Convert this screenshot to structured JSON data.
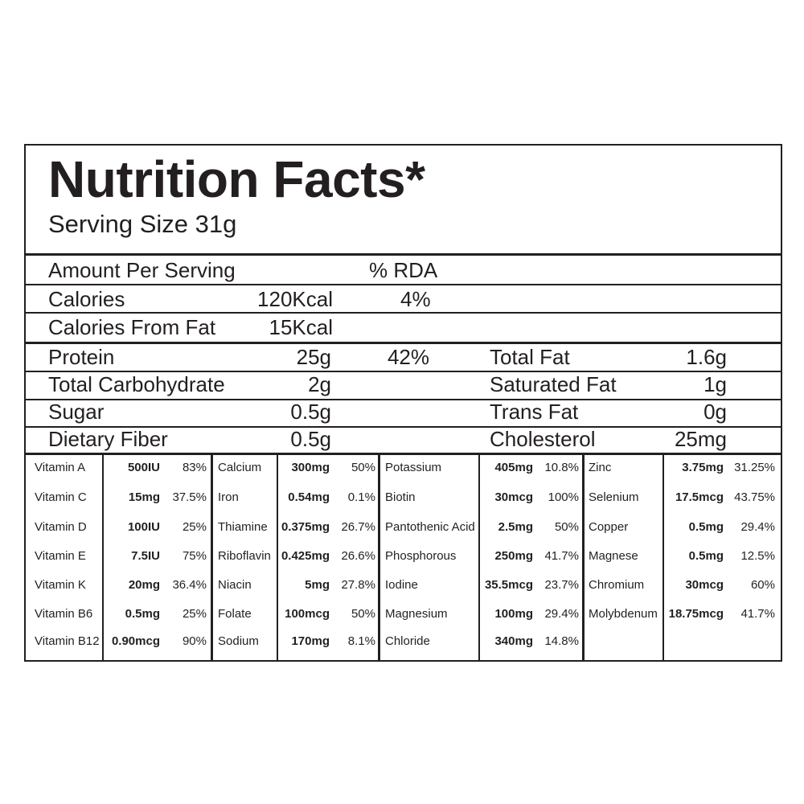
{
  "title": "Nutrition Facts*",
  "serving_size": "Serving Size 31g",
  "header": {
    "amount_label": "Amount Per Serving",
    "rda_label": "% RDA"
  },
  "calories": {
    "label": "Calories",
    "value": "120Kcal",
    "rda": "4%"
  },
  "calories_from_fat": {
    "label": "Calories From Fat",
    "value": "15Kcal"
  },
  "macros_left": [
    {
      "label": "Protein",
      "value": "25g",
      "rda": "42%"
    },
    {
      "label": "Total Carbohydrate",
      "value": "2g",
      "rda": ""
    },
    {
      "label": "Sugar",
      "value": "0.5g",
      "rda": ""
    },
    {
      "label": "Dietary Fiber",
      "value": "0.5g",
      "rda": ""
    }
  ],
  "macros_right": [
    {
      "label": "Total Fat",
      "value": "1.6g"
    },
    {
      "label": "Saturated Fat",
      "value": "1g"
    },
    {
      "label": "Trans Fat",
      "value": "0g"
    },
    {
      "label": "Cholesterol",
      "value": "25mg"
    }
  ],
  "micros": [
    [
      {
        "name": "Vitamin A",
        "amount": "500IU",
        "pct": "83%"
      },
      {
        "name": "Vitamin C",
        "amount": "15mg",
        "pct": "37.5%"
      },
      {
        "name": "Vitamin D",
        "amount": "100IU",
        "pct": "25%"
      },
      {
        "name": "Vitamin E",
        "amount": "7.5IU",
        "pct": "75%"
      },
      {
        "name": "Vitamin K",
        "amount": "20mg",
        "pct": "36.4%"
      },
      {
        "name": "Vitamin B6",
        "amount": "0.5mg",
        "pct": "25%"
      },
      {
        "name": "Vitamin B12",
        "amount": "0.90mcg",
        "pct": "90%"
      }
    ],
    [
      {
        "name": "Calcium",
        "amount": "300mg",
        "pct": "50%"
      },
      {
        "name": "Iron",
        "amount": "0.54mg",
        "pct": "0.1%"
      },
      {
        "name": "Thiamine",
        "amount": "0.375mg",
        "pct": "26.7%"
      },
      {
        "name": "Riboflavin",
        "amount": "0.425mg",
        "pct": "26.6%"
      },
      {
        "name": "Niacin",
        "amount": "5mg",
        "pct": "27.8%"
      },
      {
        "name": "Folate",
        "amount": "100mcg",
        "pct": "50%"
      },
      {
        "name": "Sodium",
        "amount": "170mg",
        "pct": "8.1%"
      }
    ],
    [
      {
        "name": "Potassium",
        "amount": "405mg",
        "pct": "10.8%"
      },
      {
        "name": "Biotin",
        "amount": "30mcg",
        "pct": "100%"
      },
      {
        "name": "Pantothenic Acid",
        "amount": "2.5mg",
        "pct": "50%"
      },
      {
        "name": "Phosphorous",
        "amount": "250mg",
        "pct": "41.7%"
      },
      {
        "name": "Iodine",
        "amount": "35.5mcg",
        "pct": "23.7%"
      },
      {
        "name": "Magnesium",
        "amount": "100mg",
        "pct": "29.4%"
      },
      {
        "name": "Chloride",
        "amount": "340mg",
        "pct": "14.8%"
      }
    ],
    [
      {
        "name": "Zinc",
        "amount": "3.75mg",
        "pct": "31.25%"
      },
      {
        "name": "Selenium",
        "amount": "17.5mcg",
        "pct": "43.75%"
      },
      {
        "name": "Copper",
        "amount": "0.5mg",
        "pct": "29.4%"
      },
      {
        "name": "Magnese",
        "amount": "0.5mg",
        "pct": "12.5%"
      },
      {
        "name": "Chromium",
        "amount": "30mcg",
        "pct": "60%"
      },
      {
        "name": "Molybdenum",
        "amount": "18.75mcg",
        "pct": "41.7%"
      }
    ]
  ]
}
